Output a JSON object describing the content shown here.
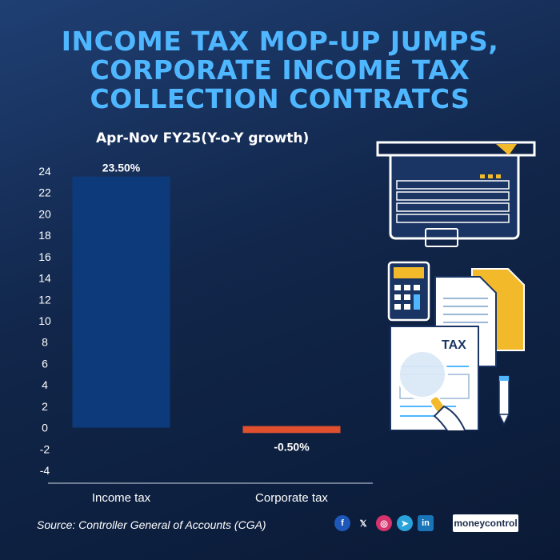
{
  "header": {
    "title_lines": [
      "INCOME TAX MOP-UP JUMPS,",
      "CORPORATE INCOME TAX",
      "COLLECTION CONTRATCS"
    ],
    "subtitle": "Apr-Nov FY25(Y-o-Y growth)"
  },
  "chart_data": {
    "type": "bar",
    "categories": [
      "Income tax",
      "Corporate tax"
    ],
    "values": [
      23.5,
      -0.5
    ],
    "value_labels": [
      "23.50%",
      "-0.50%"
    ],
    "yticks": [
      24,
      22,
      20,
      18,
      16,
      14,
      12,
      10,
      8,
      6,
      4,
      2,
      0,
      -2,
      -4
    ],
    "ylim": [
      -4,
      24
    ],
    "grid": false,
    "colors": {
      "positive": "#0d3a7a",
      "negative": "#e0502f"
    }
  },
  "footer": {
    "source": "Source: Controller General of Accounts (CGA)",
    "brand": "moneycontrol",
    "social_icons": [
      "facebook-icon",
      "x-icon",
      "instagram-icon",
      "telegram-icon",
      "linkedin-icon"
    ]
  },
  "illustration": {
    "tax_label": "TAX"
  }
}
